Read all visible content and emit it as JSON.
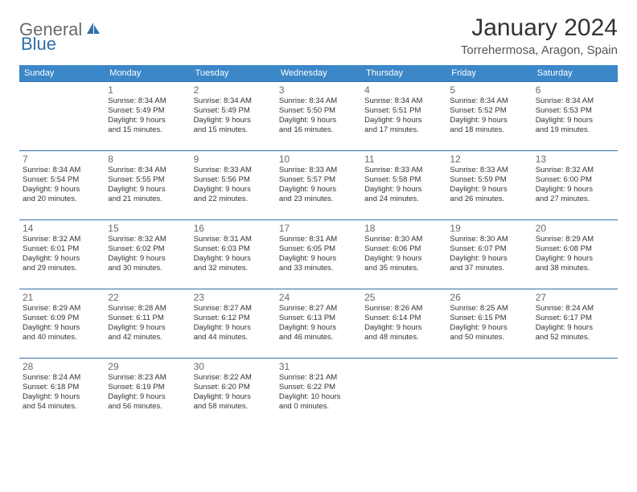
{
  "logo": {
    "general": "General",
    "blue": "Blue"
  },
  "title": "January 2024",
  "location": "Torrehermosa, Aragon, Spain",
  "colors": {
    "header_bg": "#3b87c8",
    "border": "#2f6fa8",
    "text": "#333333",
    "muted": "#6a6a6a",
    "logo_gray": "#6a6a6a",
    "logo_blue": "#2f6fa8",
    "background": "#ffffff"
  },
  "weekdays": [
    "Sunday",
    "Monday",
    "Tuesday",
    "Wednesday",
    "Thursday",
    "Friday",
    "Saturday"
  ],
  "weeks": [
    [
      null,
      {
        "n": "1",
        "sr": "Sunrise: 8:34 AM",
        "ss": "Sunset: 5:49 PM",
        "d1": "Daylight: 9 hours",
        "d2": "and 15 minutes."
      },
      {
        "n": "2",
        "sr": "Sunrise: 8:34 AM",
        "ss": "Sunset: 5:49 PM",
        "d1": "Daylight: 9 hours",
        "d2": "and 15 minutes."
      },
      {
        "n": "3",
        "sr": "Sunrise: 8:34 AM",
        "ss": "Sunset: 5:50 PM",
        "d1": "Daylight: 9 hours",
        "d2": "and 16 minutes."
      },
      {
        "n": "4",
        "sr": "Sunrise: 8:34 AM",
        "ss": "Sunset: 5:51 PM",
        "d1": "Daylight: 9 hours",
        "d2": "and 17 minutes."
      },
      {
        "n": "5",
        "sr": "Sunrise: 8:34 AM",
        "ss": "Sunset: 5:52 PM",
        "d1": "Daylight: 9 hours",
        "d2": "and 18 minutes."
      },
      {
        "n": "6",
        "sr": "Sunrise: 8:34 AM",
        "ss": "Sunset: 5:53 PM",
        "d1": "Daylight: 9 hours",
        "d2": "and 19 minutes."
      }
    ],
    [
      {
        "n": "7",
        "sr": "Sunrise: 8:34 AM",
        "ss": "Sunset: 5:54 PM",
        "d1": "Daylight: 9 hours",
        "d2": "and 20 minutes."
      },
      {
        "n": "8",
        "sr": "Sunrise: 8:34 AM",
        "ss": "Sunset: 5:55 PM",
        "d1": "Daylight: 9 hours",
        "d2": "and 21 minutes."
      },
      {
        "n": "9",
        "sr": "Sunrise: 8:33 AM",
        "ss": "Sunset: 5:56 PM",
        "d1": "Daylight: 9 hours",
        "d2": "and 22 minutes."
      },
      {
        "n": "10",
        "sr": "Sunrise: 8:33 AM",
        "ss": "Sunset: 5:57 PM",
        "d1": "Daylight: 9 hours",
        "d2": "and 23 minutes."
      },
      {
        "n": "11",
        "sr": "Sunrise: 8:33 AM",
        "ss": "Sunset: 5:58 PM",
        "d1": "Daylight: 9 hours",
        "d2": "and 24 minutes."
      },
      {
        "n": "12",
        "sr": "Sunrise: 8:33 AM",
        "ss": "Sunset: 5:59 PM",
        "d1": "Daylight: 9 hours",
        "d2": "and 26 minutes."
      },
      {
        "n": "13",
        "sr": "Sunrise: 8:32 AM",
        "ss": "Sunset: 6:00 PM",
        "d1": "Daylight: 9 hours",
        "d2": "and 27 minutes."
      }
    ],
    [
      {
        "n": "14",
        "sr": "Sunrise: 8:32 AM",
        "ss": "Sunset: 6:01 PM",
        "d1": "Daylight: 9 hours",
        "d2": "and 29 minutes."
      },
      {
        "n": "15",
        "sr": "Sunrise: 8:32 AM",
        "ss": "Sunset: 6:02 PM",
        "d1": "Daylight: 9 hours",
        "d2": "and 30 minutes."
      },
      {
        "n": "16",
        "sr": "Sunrise: 8:31 AM",
        "ss": "Sunset: 6:03 PM",
        "d1": "Daylight: 9 hours",
        "d2": "and 32 minutes."
      },
      {
        "n": "17",
        "sr": "Sunrise: 8:31 AM",
        "ss": "Sunset: 6:05 PM",
        "d1": "Daylight: 9 hours",
        "d2": "and 33 minutes."
      },
      {
        "n": "18",
        "sr": "Sunrise: 8:30 AM",
        "ss": "Sunset: 6:06 PM",
        "d1": "Daylight: 9 hours",
        "d2": "and 35 minutes."
      },
      {
        "n": "19",
        "sr": "Sunrise: 8:30 AM",
        "ss": "Sunset: 6:07 PM",
        "d1": "Daylight: 9 hours",
        "d2": "and 37 minutes."
      },
      {
        "n": "20",
        "sr": "Sunrise: 8:29 AM",
        "ss": "Sunset: 6:08 PM",
        "d1": "Daylight: 9 hours",
        "d2": "and 38 minutes."
      }
    ],
    [
      {
        "n": "21",
        "sr": "Sunrise: 8:29 AM",
        "ss": "Sunset: 6:09 PM",
        "d1": "Daylight: 9 hours",
        "d2": "and 40 minutes."
      },
      {
        "n": "22",
        "sr": "Sunrise: 8:28 AM",
        "ss": "Sunset: 6:11 PM",
        "d1": "Daylight: 9 hours",
        "d2": "and 42 minutes."
      },
      {
        "n": "23",
        "sr": "Sunrise: 8:27 AM",
        "ss": "Sunset: 6:12 PM",
        "d1": "Daylight: 9 hours",
        "d2": "and 44 minutes."
      },
      {
        "n": "24",
        "sr": "Sunrise: 8:27 AM",
        "ss": "Sunset: 6:13 PM",
        "d1": "Daylight: 9 hours",
        "d2": "and 46 minutes."
      },
      {
        "n": "25",
        "sr": "Sunrise: 8:26 AM",
        "ss": "Sunset: 6:14 PM",
        "d1": "Daylight: 9 hours",
        "d2": "and 48 minutes."
      },
      {
        "n": "26",
        "sr": "Sunrise: 8:25 AM",
        "ss": "Sunset: 6:15 PM",
        "d1": "Daylight: 9 hours",
        "d2": "and 50 minutes."
      },
      {
        "n": "27",
        "sr": "Sunrise: 8:24 AM",
        "ss": "Sunset: 6:17 PM",
        "d1": "Daylight: 9 hours",
        "d2": "and 52 minutes."
      }
    ],
    [
      {
        "n": "28",
        "sr": "Sunrise: 8:24 AM",
        "ss": "Sunset: 6:18 PM",
        "d1": "Daylight: 9 hours",
        "d2": "and 54 minutes."
      },
      {
        "n": "29",
        "sr": "Sunrise: 8:23 AM",
        "ss": "Sunset: 6:19 PM",
        "d1": "Daylight: 9 hours",
        "d2": "and 56 minutes."
      },
      {
        "n": "30",
        "sr": "Sunrise: 8:22 AM",
        "ss": "Sunset: 6:20 PM",
        "d1": "Daylight: 9 hours",
        "d2": "and 58 minutes."
      },
      {
        "n": "31",
        "sr": "Sunrise: 8:21 AM",
        "ss": "Sunset: 6:22 PM",
        "d1": "Daylight: 10 hours",
        "d2": "and 0 minutes."
      },
      null,
      null,
      null
    ]
  ]
}
